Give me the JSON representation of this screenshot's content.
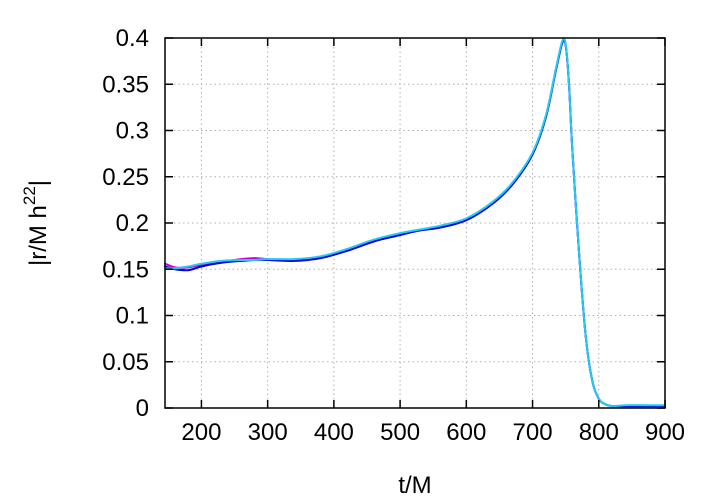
{
  "chart_data": {
    "type": "line",
    "xlabel": "t/M",
    "ylabel": "|r/M h",
    "ylabel_sup": "22",
    "ylabel_end": "|",
    "xlim": [
      145,
      900
    ],
    "ylim": [
      0,
      0.4
    ],
    "xticks": [
      200,
      300,
      400,
      500,
      600,
      700,
      800,
      900
    ],
    "xtick_labels": [
      "200",
      "300",
      "400",
      "500",
      "600",
      "700",
      "800",
      "900"
    ],
    "yticks": [
      0,
      0.05,
      0.1,
      0.15,
      0.2,
      0.25,
      0.3,
      0.35,
      0.4
    ],
    "ytick_labels": [
      "0",
      "0.05",
      "0.1",
      "0.15",
      "0.2",
      "0.25",
      "0.3",
      "0.35",
      "0.4"
    ],
    "grid": true,
    "series": [
      {
        "color": "#cc00cc",
        "x": [
          145,
          160,
          180,
          200,
          230,
          260,
          280,
          300,
          340,
          380,
          420,
          460,
          500,
          530,
          560,
          600,
          640,
          670,
          700,
          720,
          735,
          745,
          750,
          755,
          760,
          770,
          780,
          790,
          800,
          810,
          820,
          840,
          870,
          900
        ],
        "y": [
          0.156,
          0.152,
          0.152,
          0.155,
          0.158,
          0.161,
          0.162,
          0.161,
          0.16,
          0.163,
          0.17,
          0.18,
          0.188,
          0.192,
          0.196,
          0.204,
          0.222,
          0.243,
          0.275,
          0.315,
          0.365,
          0.396,
          0.392,
          0.35,
          0.28,
          0.17,
          0.08,
          0.03,
          0.01,
          0.004,
          0.002,
          0.002,
          0.002,
          0.002
        ]
      },
      {
        "color": "#0000dd",
        "x": [
          145,
          160,
          180,
          200,
          230,
          260,
          280,
          300,
          340,
          380,
          420,
          460,
          500,
          530,
          560,
          600,
          640,
          670,
          700,
          720,
          735,
          745,
          750,
          755,
          760,
          770,
          780,
          790,
          800,
          810,
          820,
          840,
          870,
          900
        ],
        "y": [
          0.153,
          0.15,
          0.149,
          0.153,
          0.157,
          0.159,
          0.16,
          0.16,
          0.159,
          0.162,
          0.17,
          0.18,
          0.187,
          0.192,
          0.195,
          0.203,
          0.221,
          0.242,
          0.274,
          0.314,
          0.364,
          0.395,
          0.392,
          0.35,
          0.28,
          0.17,
          0.08,
          0.03,
          0.01,
          0.004,
          0.002,
          0.002,
          0.002,
          0.002
        ]
      },
      {
        "color": "#22ccee",
        "x": [
          145,
          160,
          180,
          200,
          230,
          260,
          280,
          300,
          340,
          380,
          420,
          460,
          500,
          530,
          560,
          600,
          640,
          670,
          700,
          720,
          735,
          745,
          750,
          755,
          760,
          770,
          780,
          790,
          800,
          810,
          820,
          840,
          870,
          900
        ],
        "y": [
          0.151,
          0.151,
          0.153,
          0.156,
          0.159,
          0.16,
          0.16,
          0.161,
          0.161,
          0.164,
          0.172,
          0.182,
          0.189,
          0.193,
          0.197,
          0.205,
          0.223,
          0.244,
          0.276,
          0.316,
          0.366,
          0.397,
          0.393,
          0.35,
          0.28,
          0.17,
          0.08,
          0.03,
          0.01,
          0.004,
          0.002,
          0.003,
          0.003,
          0.003
        ]
      }
    ]
  }
}
